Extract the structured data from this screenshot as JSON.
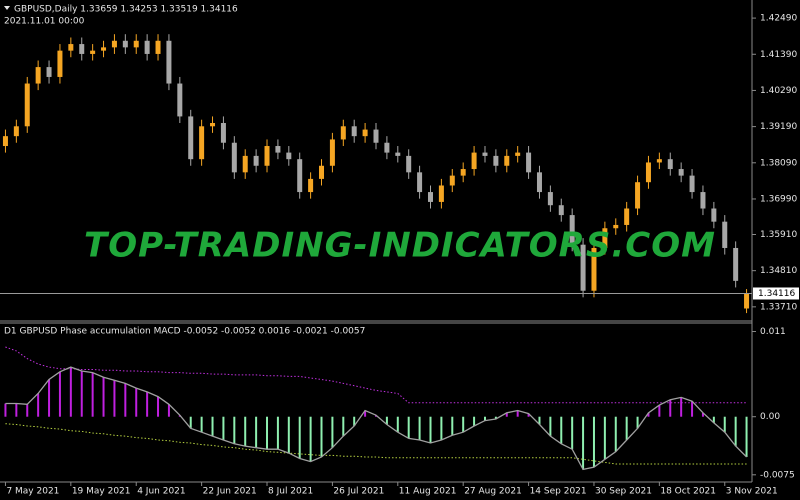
{
  "chart_data": [
    {
      "type": "candlestick",
      "title": "GBPUSD,Daily  1.33659 1.34253 1.33519 1.34116",
      "subtitle": "2021.11.01 00:00",
      "annotation": "TOP-TRADING-INDICATORS.COM",
      "categories": [
        "7 May 2021",
        null,
        null,
        null,
        null,
        null,
        "19 May 2021",
        null,
        null,
        null,
        null,
        null,
        "4 Jun 2021",
        null,
        null,
        null,
        null,
        null,
        "22 Jun 2021",
        null,
        null,
        null,
        null,
        null,
        "8 Jul 2021",
        null,
        null,
        null,
        null,
        null,
        "26 Jul 2021",
        null,
        null,
        null,
        null,
        null,
        "11 Aug 2021",
        null,
        null,
        null,
        null,
        null,
        "27 Aug 2021",
        null,
        null,
        null,
        null,
        null,
        "14 Sep 2021",
        null,
        null,
        null,
        null,
        null,
        "30 Sep 2021",
        null,
        null,
        null,
        null,
        null,
        "18 Oct 2021",
        null,
        null,
        null,
        null,
        null,
        "3 Nov 2021",
        null,
        null
      ],
      "open": [
        1.386,
        1.389,
        1.392,
        1.405,
        1.41,
        1.407,
        1.415,
        1.417,
        1.414,
        1.415,
        1.416,
        1.418,
        1.416,
        1.418,
        1.414,
        1.418,
        1.405,
        1.395,
        1.382,
        1.392,
        1.393,
        1.387,
        1.378,
        1.383,
        1.38,
        1.386,
        1.384,
        1.382,
        1.372,
        1.376,
        1.38,
        1.388,
        1.392,
        1.389,
        1.391,
        1.387,
        1.384,
        1.383,
        1.378,
        1.372,
        1.369,
        1.374,
        1.377,
        1.379,
        1.384,
        1.383,
        1.38,
        1.383,
        1.384,
        1.378,
        1.372,
        1.368,
        1.365,
        1.356,
        1.342,
        1.355,
        1.361,
        1.362,
        1.367,
        1.375,
        1.381,
        1.382,
        1.379,
        1.377,
        1.372,
        1.367,
        1.363,
        1.355,
        1.3366
      ],
      "high": [
        1.391,
        1.394,
        1.407,
        1.412,
        1.412,
        1.417,
        1.419,
        1.419,
        1.417,
        1.418,
        1.42,
        1.42,
        1.42,
        1.42,
        1.42,
        1.42,
        1.407,
        1.397,
        1.394,
        1.395,
        1.395,
        1.389,
        1.385,
        1.385,
        1.388,
        1.388,
        1.386,
        1.384,
        1.378,
        1.382,
        1.39,
        1.394,
        1.394,
        1.393,
        1.393,
        1.389,
        1.386,
        1.385,
        1.38,
        1.374,
        1.376,
        1.379,
        1.381,
        1.386,
        1.386,
        1.385,
        1.385,
        1.386,
        1.386,
        1.38,
        1.374,
        1.37,
        1.367,
        1.358,
        1.357,
        1.363,
        1.364,
        1.369,
        1.377,
        1.383,
        1.384,
        1.384,
        1.381,
        1.379,
        1.374,
        1.369,
        1.365,
        1.357,
        1.3425
      ],
      "low": [
        1.384,
        1.387,
        1.39,
        1.403,
        1.405,
        1.405,
        1.413,
        1.412,
        1.412,
        1.413,
        1.414,
        1.414,
        1.414,
        1.412,
        1.412,
        1.403,
        1.393,
        1.38,
        1.38,
        1.39,
        1.385,
        1.376,
        1.376,
        1.378,
        1.378,
        1.382,
        1.38,
        1.37,
        1.37,
        1.374,
        1.378,
        1.386,
        1.387,
        1.387,
        1.385,
        1.382,
        1.381,
        1.376,
        1.37,
        1.367,
        1.367,
        1.372,
        1.375,
        1.377,
        1.381,
        1.378,
        1.378,
        1.381,
        1.376,
        1.37,
        1.366,
        1.363,
        1.354,
        1.34,
        1.34,
        1.353,
        1.359,
        1.36,
        1.365,
        1.373,
        1.379,
        1.377,
        1.375,
        1.37,
        1.365,
        1.361,
        1.353,
        1.343,
        1.3352
      ],
      "close": [
        1.389,
        1.392,
        1.405,
        1.41,
        1.407,
        1.415,
        1.417,
        1.414,
        1.415,
        1.416,
        1.418,
        1.416,
        1.418,
        1.414,
        1.418,
        1.405,
        1.395,
        1.382,
        1.392,
        1.393,
        1.387,
        1.378,
        1.383,
        1.38,
        1.386,
        1.384,
        1.382,
        1.372,
        1.376,
        1.38,
        1.388,
        1.392,
        1.389,
        1.391,
        1.387,
        1.384,
        1.383,
        1.378,
        1.372,
        1.369,
        1.374,
        1.377,
        1.379,
        1.384,
        1.383,
        1.38,
        1.383,
        1.384,
        1.378,
        1.372,
        1.368,
        1.365,
        1.356,
        1.342,
        1.355,
        1.361,
        1.362,
        1.367,
        1.375,
        1.381,
        1.382,
        1.379,
        1.377,
        1.372,
        1.367,
        1.363,
        1.355,
        1.345,
        1.3412
      ],
      "up_color": "#f5a623",
      "down_color": "#a8a8a8",
      "ylim": [
        1.3331,
        1.4304
      ],
      "yticks": [
        {
          "value": 1.4249,
          "label": "1.42490"
        },
        {
          "value": 1.4139,
          "label": "1.41390"
        },
        {
          "value": 1.4029,
          "label": "1.40290"
        },
        {
          "value": 1.3919,
          "label": "1.39190"
        },
        {
          "value": 1.3809,
          "label": "1.38090"
        },
        {
          "value": 1.3699,
          "label": "1.36990"
        },
        {
          "value": 1.3591,
          "label": "1.35910"
        },
        {
          "value": 1.3481,
          "label": "1.34810"
        },
        {
          "value": 1.3371,
          "label": "1.33710"
        }
      ],
      "current_price": {
        "value": 1.34116,
        "label": "1.34116"
      }
    },
    {
      "type": "histogram",
      "title": "D1 GBPUSD Phase accumulation MACD -0.0052 -0.0052 0.0016 -0.0021 -0.0057",
      "values": [
        0.0017,
        0.0017,
        0.0016,
        0.003,
        0.0048,
        0.0058,
        0.0064,
        0.0059,
        0.0057,
        0.0051,
        0.0047,
        0.0043,
        0.0037,
        0.0032,
        0.0026,
        0.0016,
        0.0002,
        -0.0015,
        -0.002,
        -0.0025,
        -0.003,
        -0.0035,
        -0.0038,
        -0.004,
        -0.0042,
        -0.0042,
        -0.0047,
        -0.0054,
        -0.0058,
        -0.0052,
        -0.004,
        -0.0025,
        -0.0012,
        0.0008,
        0.0002,
        -0.001,
        -0.002,
        -0.0028,
        -0.003,
        -0.0034,
        -0.003,
        -0.0024,
        -0.002,
        -0.0012,
        -0.0005,
        -0.0003,
        0.0005,
        0.0008,
        0.0004,
        -0.001,
        -0.0025,
        -0.0035,
        -0.0042,
        -0.0068,
        -0.0065,
        -0.0055,
        -0.0045,
        -0.003,
        -0.0015,
        0.0005,
        0.0015,
        0.0022,
        0.0025,
        0.002,
        0.0005,
        -0.0008,
        -0.002,
        -0.0038,
        -0.0052
      ],
      "positive_color": "#c020e0",
      "negative_color": "#8ff0b0",
      "line_color": "#a0a0a0",
      "upper_band": [
        0.009,
        0.0085,
        0.0075,
        0.0068,
        0.0064,
        0.0062,
        0.0062,
        0.0061,
        0.0061,
        0.006,
        0.006,
        0.0059,
        0.0059,
        0.0058,
        0.0058,
        0.0057,
        0.0057,
        0.0056,
        0.0056,
        0.0055,
        0.0055,
        0.0054,
        0.0054,
        0.0054,
        0.0053,
        0.0053,
        0.0052,
        0.0052,
        0.005,
        0.0048,
        0.0046,
        0.0043,
        0.004,
        0.0037,
        0.0034,
        0.0032,
        0.003,
        0.0018,
        0.0018,
        0.0018,
        0.0018,
        0.0018,
        0.0018,
        0.0018,
        0.0018,
        0.0018,
        0.0018,
        0.0018,
        0.0018,
        0.0018,
        0.0018,
        0.0018,
        0.0018,
        0.0018,
        0.0018,
        0.0018,
        0.0018,
        0.0018,
        0.0018,
        0.0018,
        0.0018,
        0.0018,
        0.0018,
        0.0018,
        0.0018,
        0.0018,
        0.0018,
        0.0018,
        0.0018
      ],
      "upper_color": "#c030e0",
      "lower_band": [
        -0.0009,
        -0.001,
        -0.0012,
        -0.0013,
        -0.0015,
        -0.0016,
        -0.0018,
        -0.0019,
        -0.0021,
        -0.0022,
        -0.0024,
        -0.0025,
        -0.0027,
        -0.0028,
        -0.003,
        -0.0031,
        -0.0033,
        -0.0034,
        -0.0036,
        -0.0037,
        -0.0039,
        -0.004,
        -0.0042,
        -0.0043,
        -0.0045,
        -0.0046,
        -0.0047,
        -0.0048,
        -0.0049,
        -0.005,
        -0.005,
        -0.0051,
        -0.0051,
        -0.0052,
        -0.0052,
        -0.0053,
        -0.0053,
        -0.0053,
        -0.0053,
        -0.0053,
        -0.0053,
        -0.0053,
        -0.0053,
        -0.0053,
        -0.0053,
        -0.0053,
        -0.0053,
        -0.0053,
        -0.0053,
        -0.0053,
        -0.0053,
        -0.0053,
        -0.0053,
        -0.0055,
        -0.0057,
        -0.0059,
        -0.0061,
        -0.0061,
        -0.0061,
        -0.0061,
        -0.0061,
        -0.0061,
        -0.0061,
        -0.0061,
        -0.0061,
        -0.0061,
        -0.0061,
        -0.0061,
        -0.0061
      ],
      "lower_color": "#b5d040",
      "ylim": [
        -0.0083,
        0.0121
      ],
      "yticks": [
        0.011,
        {
          "value": 0,
          "label": "0.00"
        },
        -0.0075
      ]
    }
  ]
}
